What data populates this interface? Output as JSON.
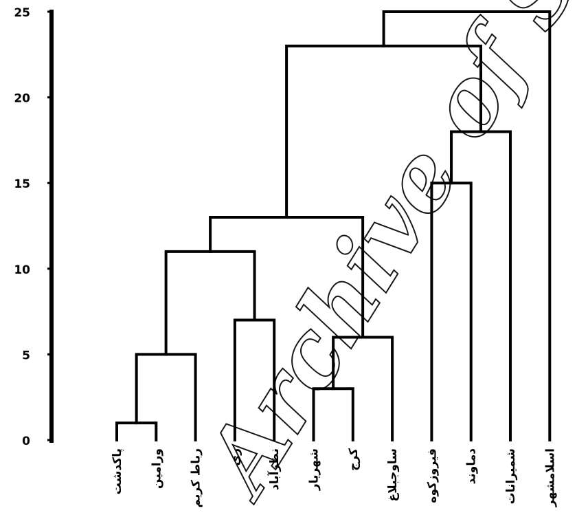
{
  "chart_data": {
    "type": "dendrogram",
    "title": "",
    "xlabel": "",
    "ylabel": "",
    "ylim": [
      0,
      25
    ],
    "yticks": [
      0,
      5,
      10,
      15,
      20,
      25
    ],
    "grid": false,
    "leaves": [
      "پاکدشت",
      "ورامین",
      "رباط کریم",
      "ری",
      "نظرآباد",
      "شهریار",
      "کرج",
      "ساوجبلاغ",
      "فیروزکوه",
      "دماوند",
      "شمیرانات",
      "اسلامشهر"
    ],
    "merges": [
      {
        "left": 0,
        "right": 1,
        "height": 1
      },
      {
        "left": 5,
        "right": 6,
        "height": 3
      },
      {
        "left": 12,
        "right": 2,
        "height": 5
      },
      {
        "left": 13,
        "right": 7,
        "height": 6
      },
      {
        "left": 3,
        "right": 4,
        "height": 7
      },
      {
        "left": 14,
        "right": 16,
        "height": 11
      },
      {
        "left": 17,
        "right": 15,
        "height": 13
      },
      {
        "left": 8,
        "right": 9,
        "height": 15
      },
      {
        "left": 19,
        "right": 10,
        "height": 18
      },
      {
        "left": 18,
        "right": 20,
        "height": 23
      },
      {
        "left": 21,
        "right": 11,
        "height": 25
      }
    ]
  },
  "watermark": "Archive of SID"
}
